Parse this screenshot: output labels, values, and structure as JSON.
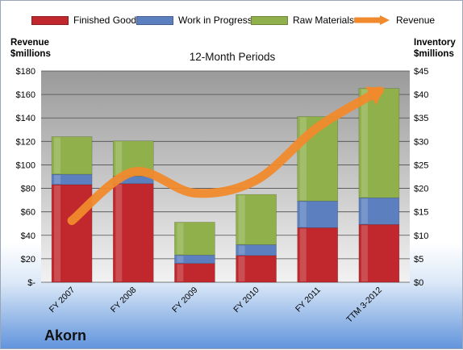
{
  "company": "Akorn",
  "chart_data": {
    "type": "bar",
    "stacked": true,
    "subtitle": "12-Month Periods",
    "left_axis_title": [
      "Revenue",
      "$millions"
    ],
    "right_axis_title": [
      "Inventory",
      "$millions"
    ],
    "categories": [
      "FY 2007",
      "FY 2008",
      "FY 2009",
      "FY 2010",
      "FY 2011",
      "TTM 3-2012"
    ],
    "series": [
      {
        "name": "Finished Goods",
        "type": "bar",
        "axis": "right",
        "color": "#c0282d",
        "values": [
          20.8,
          21.0,
          4.0,
          5.7,
          11.6,
          12.3
        ]
      },
      {
        "name": "Work in Progress",
        "type": "bar",
        "axis": "right",
        "color": "#5b7fbf",
        "values": [
          2.2,
          1.6,
          1.8,
          2.3,
          5.7,
          5.7
        ]
      },
      {
        "name": "Raw Materials",
        "type": "bar",
        "axis": "right",
        "color": "#8fb04a",
        "values": [
          8.0,
          7.5,
          7.0,
          10.7,
          18.0,
          23.3
        ]
      },
      {
        "name": "Revenue",
        "type": "line",
        "axis": "left",
        "color": "#f08a2c",
        "values": [
          52.5,
          94,
          76,
          87,
          132,
          163
        ]
      }
    ],
    "left_ylim": [
      0,
      180
    ],
    "left_ticks": [
      "$-",
      "$20",
      "$40",
      "$60",
      "$80",
      "$100",
      "$120",
      "$140",
      "$160",
      "$180"
    ],
    "right_ylim": [
      0,
      45
    ],
    "right_ticks": [
      "$0",
      "$5",
      "$10",
      "$15",
      "$20",
      "$25",
      "$30",
      "$35",
      "$40",
      "$45"
    ],
    "grid": true
  }
}
